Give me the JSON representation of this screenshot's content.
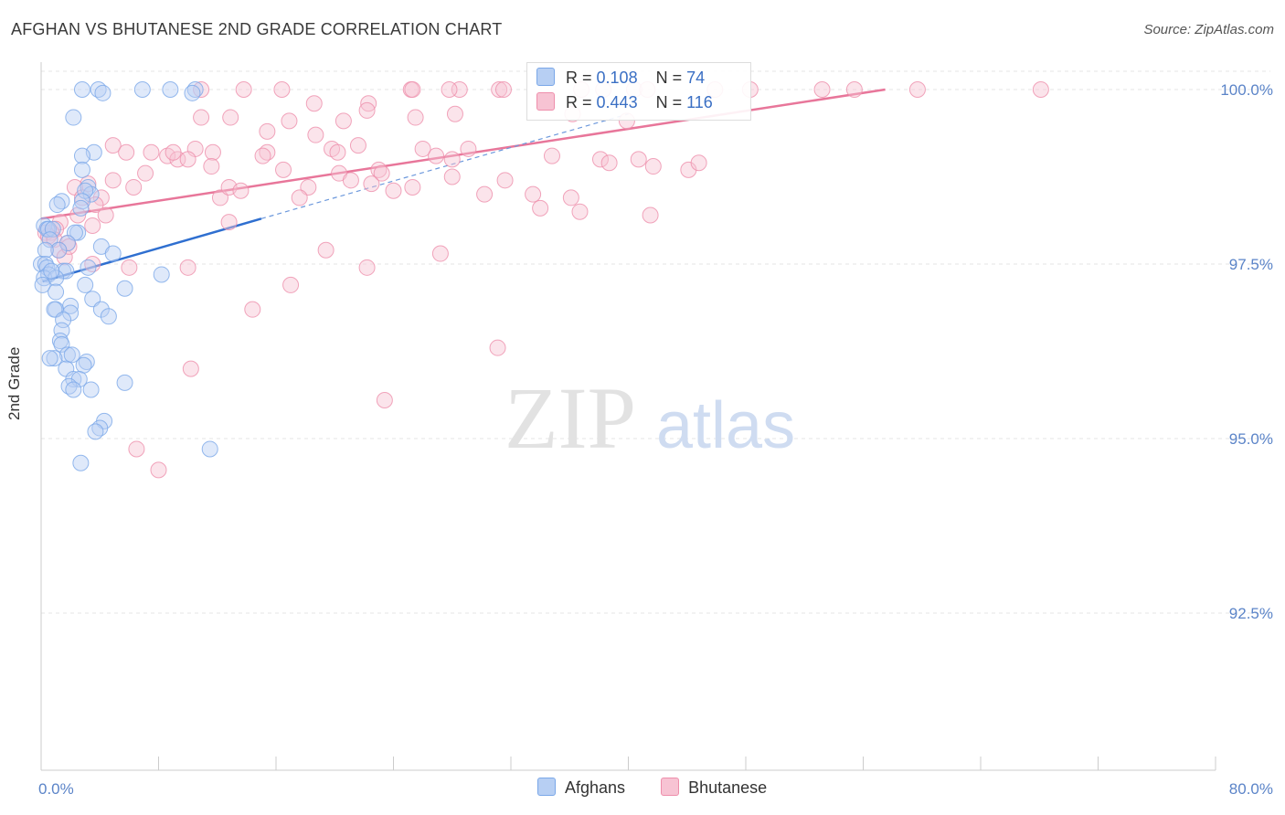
{
  "header": {
    "title": "AFGHAN VS BHUTANESE 2ND GRADE CORRELATION CHART",
    "source": "Source: ZipAtlas.com"
  },
  "watermark": {
    "zip": "ZIP",
    "atlas": "atlas"
  },
  "legend": {
    "r_label": "R =",
    "n_label": "N =",
    "series": [
      {
        "name": "Afghans",
        "r": "0.108",
        "n": "74",
        "color": "#7aa7e8",
        "fill": "#b7cff3"
      },
      {
        "name": "Bhutanese",
        "r": "0.443",
        "n": "116",
        "color": "#ee8eab",
        "fill": "#f7c3d3"
      }
    ]
  },
  "chart_data": {
    "type": "scatter",
    "title": "AFGHAN VS BHUTANESE 2ND GRADE CORRELATION CHART",
    "xlabel": "",
    "ylabel": "2nd Grade",
    "xlim": [
      0,
      80
    ],
    "ylim": [
      90,
      100.2
    ],
    "x_tick_labels": [
      "0.0%",
      "80.0%"
    ],
    "y_ticks": [
      100,
      97.5,
      95,
      92.5
    ],
    "y_tick_labels": [
      "100.0%",
      "97.5%",
      "95.0%",
      "92.5%"
    ],
    "grid": true,
    "series": [
      {
        "name": "Afghans",
        "color": "#5b8fd6",
        "trend": {
          "x": [
            0.1,
            15
          ],
          "y": [
            97.25,
            98.15
          ]
        },
        "trend_extension": {
          "x": [
            15,
            40
          ],
          "y": [
            98.15,
            99.65
          ]
        },
        "points": [
          [
            2.8,
            100
          ],
          [
            3.9,
            100
          ],
          [
            6.9,
            100
          ],
          [
            8.8,
            100
          ],
          [
            10.5,
            100
          ],
          [
            10.3,
            99.95
          ],
          [
            4.2,
            99.95
          ],
          [
            2.2,
            99.6
          ],
          [
            3.6,
            99.1
          ],
          [
            2.8,
            99.05
          ],
          [
            2.8,
            98.85
          ],
          [
            3.2,
            98.6
          ],
          [
            3.4,
            98.5
          ],
          [
            3.0,
            98.55
          ],
          [
            2.8,
            98.4
          ],
          [
            1.4,
            98.4
          ],
          [
            1.1,
            98.35
          ],
          [
            2.7,
            98.3
          ],
          [
            0.2,
            98.05
          ],
          [
            0.4,
            98.0
          ],
          [
            0.5,
            98.0
          ],
          [
            0.8,
            98.0
          ],
          [
            2.5,
            97.95
          ],
          [
            2.3,
            97.95
          ],
          [
            0.6,
            97.85
          ],
          [
            1.8,
            97.8
          ],
          [
            1.2,
            97.7
          ],
          [
            0.3,
            97.7
          ],
          [
            4.1,
            97.75
          ],
          [
            4.9,
            97.65
          ],
          [
            0.0,
            97.5
          ],
          [
            0.3,
            97.5
          ],
          [
            0.4,
            97.45
          ],
          [
            1.5,
            97.4
          ],
          [
            1.7,
            97.4
          ],
          [
            0.5,
            97.35
          ],
          [
            0.2,
            97.3
          ],
          [
            8.2,
            97.35
          ],
          [
            1.0,
            97.3
          ],
          [
            3.0,
            97.2
          ],
          [
            5.7,
            97.15
          ],
          [
            0.1,
            97.2
          ],
          [
            1.0,
            97.1
          ],
          [
            3.5,
            97.0
          ],
          [
            2.0,
            96.9
          ],
          [
            1.0,
            96.85
          ],
          [
            0.9,
            96.85
          ],
          [
            4.1,
            96.85
          ],
          [
            2.0,
            96.8
          ],
          [
            4.6,
            96.75
          ],
          [
            1.5,
            96.7
          ],
          [
            1.4,
            96.55
          ],
          [
            1.3,
            96.4
          ],
          [
            1.4,
            96.35
          ],
          [
            1.8,
            96.2
          ],
          [
            2.1,
            96.2
          ],
          [
            0.9,
            96.15
          ],
          [
            3.1,
            96.1
          ],
          [
            2.9,
            96.05
          ],
          [
            1.7,
            96.0
          ],
          [
            2.2,
            95.85
          ],
          [
            2.6,
            95.85
          ],
          [
            5.7,
            95.8
          ],
          [
            1.9,
            95.75
          ],
          [
            3.4,
            95.7
          ],
          [
            2.2,
            95.7
          ],
          [
            4.3,
            95.25
          ],
          [
            4.0,
            95.15
          ],
          [
            3.7,
            95.1
          ],
          [
            11.5,
            94.85
          ],
          [
            2.7,
            94.65
          ],
          [
            0.6,
            96.15
          ],
          [
            3.2,
            97.45
          ],
          [
            0.7,
            97.4
          ]
        ]
      },
      {
        "name": "Bhutanese",
        "color": "#e8769a",
        "trend": {
          "x": [
            0,
            57.5
          ],
          "y": [
            98.15,
            100
          ]
        },
        "points": [
          [
            10.9,
            100
          ],
          [
            13.8,
            100
          ],
          [
            25.2,
            100
          ],
          [
            25.3,
            100
          ],
          [
            28.5,
            100
          ],
          [
            31.2,
            100
          ],
          [
            31.5,
            100
          ],
          [
            36.8,
            100
          ],
          [
            38.3,
            100
          ],
          [
            40.4,
            100
          ],
          [
            41.3,
            100
          ],
          [
            45.9,
            100
          ],
          [
            48.3,
            100
          ],
          [
            53.2,
            100
          ],
          [
            55.4,
            100
          ],
          [
            59.7,
            100
          ],
          [
            68.1,
            100
          ],
          [
            16.4,
            100
          ],
          [
            27.8,
            100
          ],
          [
            22.3,
            99.8
          ],
          [
            18.6,
            99.8
          ],
          [
            22.2,
            99.7
          ],
          [
            25.5,
            99.6
          ],
          [
            28.2,
            99.65
          ],
          [
            36.2,
            99.65
          ],
          [
            39.9,
            99.55
          ],
          [
            10.9,
            99.6
          ],
          [
            12.9,
            99.6
          ],
          [
            16.9,
            99.55
          ],
          [
            20.6,
            99.55
          ],
          [
            15.4,
            99.4
          ],
          [
            18.7,
            99.35
          ],
          [
            21.6,
            99.2
          ],
          [
            19.8,
            99.15
          ],
          [
            26.0,
            99.15
          ],
          [
            29.1,
            99.15
          ],
          [
            10.5,
            99.15
          ],
          [
            11.7,
            99.1
          ],
          [
            15.4,
            99.1
          ],
          [
            20.2,
            99.1
          ],
          [
            4.9,
            99.2
          ],
          [
            5.8,
            99.1
          ],
          [
            7.5,
            99.1
          ],
          [
            8.6,
            99.05
          ],
          [
            9.3,
            99.0
          ],
          [
            10.0,
            99.0
          ],
          [
            26.9,
            99.05
          ],
          [
            34.8,
            99.05
          ],
          [
            28.0,
            99.0
          ],
          [
            15.1,
            99.05
          ],
          [
            38.1,
            99.0
          ],
          [
            38.7,
            98.95
          ],
          [
            40.7,
            99.0
          ],
          [
            41.7,
            98.9
          ],
          [
            44.1,
            98.85
          ],
          [
            44.8,
            98.95
          ],
          [
            11.6,
            98.9
          ],
          [
            16.5,
            98.85
          ],
          [
            20.3,
            98.8
          ],
          [
            23.0,
            98.85
          ],
          [
            23.2,
            98.8
          ],
          [
            28.0,
            98.75
          ],
          [
            31.6,
            98.7
          ],
          [
            21.1,
            98.7
          ],
          [
            22.5,
            98.65
          ],
          [
            18.2,
            98.6
          ],
          [
            24.0,
            98.55
          ],
          [
            25.3,
            98.6
          ],
          [
            30.2,
            98.5
          ],
          [
            33.5,
            98.5
          ],
          [
            36.1,
            98.45
          ],
          [
            12.2,
            98.45
          ],
          [
            12.8,
            98.6
          ],
          [
            13.6,
            98.55
          ],
          [
            6.3,
            98.6
          ],
          [
            4.9,
            98.7
          ],
          [
            3.2,
            98.65
          ],
          [
            2.3,
            98.6
          ],
          [
            4.1,
            98.45
          ],
          [
            2.8,
            98.45
          ],
          [
            3.7,
            98.35
          ],
          [
            17.6,
            98.45
          ],
          [
            34.0,
            98.3
          ],
          [
            36.7,
            98.25
          ],
          [
            41.5,
            98.2
          ],
          [
            4.4,
            98.2
          ],
          [
            12.8,
            98.1
          ],
          [
            3.5,
            98.05
          ],
          [
            1.3,
            98.1
          ],
          [
            1.0,
            98.0
          ],
          [
            0.7,
            97.95
          ],
          [
            0.3,
            97.95
          ],
          [
            0.5,
            97.9
          ],
          [
            0.9,
            97.85
          ],
          [
            1.8,
            97.8
          ],
          [
            1.2,
            97.7
          ],
          [
            19.4,
            97.7
          ],
          [
            27.2,
            97.65
          ],
          [
            1.6,
            97.6
          ],
          [
            3.5,
            97.5
          ],
          [
            6.0,
            97.45
          ],
          [
            10.0,
            97.45
          ],
          [
            22.2,
            97.45
          ],
          [
            17.0,
            97.2
          ],
          [
            14.4,
            96.85
          ],
          [
            31.1,
            96.3
          ],
          [
            10.2,
            96.0
          ],
          [
            23.4,
            95.55
          ],
          [
            6.5,
            94.85
          ],
          [
            8.0,
            94.55
          ],
          [
            9.0,
            99.1
          ],
          [
            7.1,
            98.8
          ],
          [
            1.9,
            97.75
          ],
          [
            2.5,
            98.2
          ]
        ]
      }
    ]
  }
}
